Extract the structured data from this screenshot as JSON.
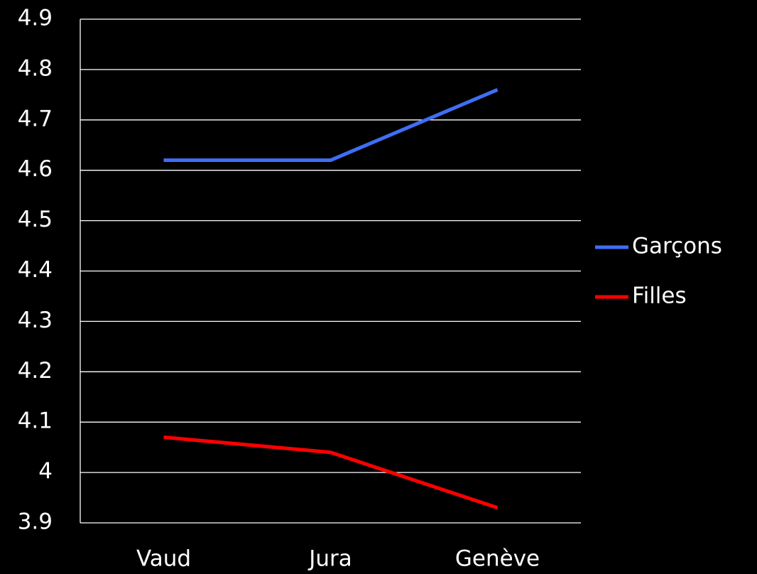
{
  "chart_data": {
    "type": "line",
    "categories": [
      "Vaud",
      "Jura",
      "Genève"
    ],
    "series": [
      {
        "name": "Garçons",
        "color": "#3f6ef5",
        "values": [
          4.62,
          4.62,
          4.76
        ]
      },
      {
        "name": "Filles",
        "color": "#ff0000",
        "values": [
          4.07,
          4.04,
          3.93
        ]
      }
    ],
    "ylim": [
      3.9,
      4.9
    ],
    "yticks": [
      3.9,
      4,
      4.1,
      4.2,
      4.3,
      4.4,
      4.5,
      4.6,
      4.7,
      4.8,
      4.9
    ],
    "grid": true,
    "legend": "right"
  }
}
